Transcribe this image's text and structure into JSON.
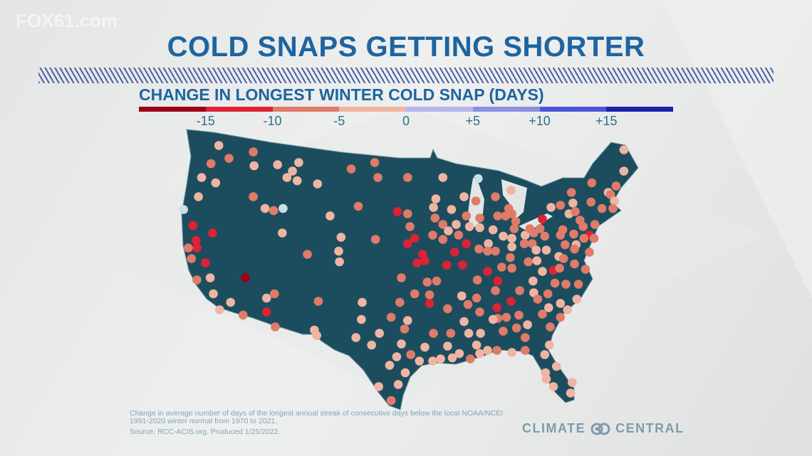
{
  "watermark": "FOX61.com",
  "title": "COLD SNAPS GETTING SHORTER",
  "subtitle": "CHANGE IN LONGEST WINTER COLD SNAP (DAYS)",
  "legend": {
    "colors": [
      "#9b0018",
      "#dd2235",
      "#e07b6a",
      "#efb5a3",
      "#b3b8ea",
      "#8a8fe4",
      "#4a55de",
      "#1a22a8"
    ],
    "ticks": [
      "-15",
      "-10",
      "-5",
      "0",
      "+5",
      "+10",
      "+15"
    ]
  },
  "map_colors": {
    "land": "#1c4d5e",
    "border": "#6f96a2",
    "water": "#e3e5e5"
  },
  "stations": [
    [
      -119.8,
      49.2,
      -2
    ],
    [
      -118.5,
      48.0,
      -7
    ],
    [
      -120.8,
      47.5,
      -7
    ],
    [
      -115.4,
      48.6,
      -7
    ],
    [
      -115.3,
      47.3,
      -2
    ],
    [
      -122.0,
      46.2,
      -2
    ],
    [
      -120.2,
      45.7,
      -2
    ],
    [
      -122.4,
      44.4,
      -2
    ],
    [
      -124.3,
      43.2,
      3
    ],
    [
      -115.4,
      44.4,
      -7
    ],
    [
      -113.9,
      43.3,
      -2
    ],
    [
      -112.8,
      43.1,
      -7
    ],
    [
      -111.6,
      43.3,
      3
    ],
    [
      -112.3,
      47.4,
      -2
    ],
    [
      -109.6,
      47.6,
      -2
    ],
    [
      -110.4,
      46.8,
      -2
    ],
    [
      -111.1,
      46.2,
      -2
    ],
    [
      -109.8,
      45.9,
      -2
    ],
    [
      -107.2,
      45.6,
      -2
    ],
    [
      -102.9,
      47.0,
      -7
    ],
    [
      -99.9,
      47.6,
      -7
    ],
    [
      -99.5,
      46.2,
      -7
    ],
    [
      -95.7,
      46.2,
      -7
    ],
    [
      -105.6,
      42.6,
      -2
    ],
    [
      -102.0,
      43.5,
      -7
    ],
    [
      -97.0,
      43.0,
      -12
    ],
    [
      -95.7,
      42.8,
      -7
    ],
    [
      -95.4,
      41.6,
      -7
    ],
    [
      -95.7,
      40.0,
      -12
    ],
    [
      -99.8,
      40.4,
      -7
    ],
    [
      -111.7,
      41.0,
      -2
    ],
    [
      -104.2,
      40.6,
      -2
    ],
    [
      -104.5,
      39.3,
      -2
    ],
    [
      -104.4,
      38.3,
      -2
    ],
    [
      -108.5,
      39.0,
      -7
    ],
    [
      -123.1,
      41.7,
      -12
    ],
    [
      -120.6,
      41.0,
      -12
    ],
    [
      -122.7,
      40.3,
      -12
    ],
    [
      -122.6,
      39.6,
      -12
    ],
    [
      -123.7,
      39.6,
      -7
    ],
    [
      -123.3,
      38.6,
      -7
    ],
    [
      -121.5,
      38.2,
      -12
    ],
    [
      -116.4,
      36.8,
      -17
    ],
    [
      -122.6,
      36.6,
      -7
    ],
    [
      -120.9,
      36.8,
      -2
    ],
    [
      -120.5,
      35.3,
      -2
    ],
    [
      -118.3,
      34.5,
      -2
    ],
    [
      -119.7,
      33.8,
      -2
    ],
    [
      -116.7,
      33.3,
      -7
    ],
    [
      -113.7,
      34.9,
      -2
    ],
    [
      -112.7,
      35.3,
      -7
    ],
    [
      -113.7,
      33.6,
      -12
    ],
    [
      -112.6,
      32.2,
      -7
    ],
    [
      -107.1,
      34.6,
      -7
    ],
    [
      -107.6,
      31.9,
      -2
    ],
    [
      -107.3,
      31.4,
      -2
    ],
    [
      -96.5,
      36.8,
      -7
    ],
    [
      -101.5,
      34.5,
      -2
    ],
    [
      -101.6,
      32.9,
      -2
    ],
    [
      -102.3,
      31.2,
      -2
    ],
    [
      -99.3,
      31.6,
      -2
    ],
    [
      -100.3,
      30.5,
      -2
    ],
    [
      -96.7,
      34.5,
      -7
    ],
    [
      -97.8,
      33.1,
      -7
    ],
    [
      -95.7,
      32.8,
      -2
    ],
    [
      -96.1,
      32.0,
      -7
    ],
    [
      -96.5,
      30.6,
      -2
    ],
    [
      -97.1,
      29.4,
      -2
    ],
    [
      -98.0,
      28.6,
      -2
    ],
    [
      -96.0,
      27.9,
      -2
    ],
    [
      -96.9,
      26.8,
      -2
    ],
    [
      -99.4,
      26.6,
      -2
    ],
    [
      -97.8,
      25.3,
      -7
    ],
    [
      -91.2,
      46.2,
      -2
    ],
    [
      -86.7,
      46.1,
      3
    ],
    [
      -68.1,
      48.8,
      -2
    ],
    [
      -68.1,
      46.8,
      -2
    ],
    [
      -72.2,
      45.7,
      -7
    ],
    [
      -69.1,
      45.4,
      -7
    ],
    [
      -74.8,
      44.8,
      -7
    ],
    [
      -70.1,
      44.8,
      -2
    ],
    [
      -69.8,
      44.6,
      -7
    ],
    [
      -69.3,
      44.0,
      -2
    ],
    [
      -82.5,
      45.0,
      -2
    ],
    [
      -84.5,
      44.4,
      -7
    ],
    [
      -92.1,
      44.2,
      -2
    ],
    [
      -88.5,
      44.4,
      -2
    ],
    [
      -87.0,
      44.0,
      -7
    ],
    [
      -92.4,
      43.4,
      -2
    ],
    [
      -90.1,
      43.2,
      -2
    ],
    [
      -92.2,
      42.4,
      -7
    ],
    [
      -91.2,
      41.8,
      -7
    ],
    [
      -88.2,
      42.6,
      -7
    ],
    [
      -86.5,
      42.4,
      -7
    ],
    [
      -89.5,
      41.8,
      -2
    ],
    [
      -87.8,
      41.6,
      -2
    ],
    [
      -86.5,
      41.5,
      -2
    ],
    [
      -90.5,
      41.2,
      -2
    ],
    [
      -92.5,
      40.8,
      -7
    ],
    [
      -89.2,
      40.8,
      -7
    ],
    [
      -91.2,
      40.4,
      -7
    ],
    [
      -94.8,
      40.5,
      -12
    ],
    [
      -88.2,
      40.0,
      -12
    ],
    [
      -89.7,
      39.2,
      -12
    ],
    [
      -93.8,
      39.0,
      -12
    ],
    [
      -93.5,
      38.4,
      -12
    ],
    [
      -94.5,
      38.2,
      -12
    ],
    [
      -90.7,
      38.0,
      -12
    ],
    [
      -88.7,
      38.0,
      -12
    ],
    [
      -85.4,
      40.0,
      -2
    ],
    [
      -86.6,
      39.5,
      -7
    ],
    [
      -85.5,
      39.3,
      -7
    ],
    [
      -84.5,
      39.3,
      -7
    ],
    [
      -84.2,
      42.6,
      -7
    ],
    [
      -82.8,
      43.3,
      -7
    ],
    [
      -83.2,
      42.6,
      -7
    ],
    [
      -82.4,
      42.8,
      -7
    ],
    [
      -81.9,
      42.1,
      -7
    ],
    [
      -84.8,
      41.3,
      -2
    ],
    [
      -83.5,
      40.7,
      -2
    ],
    [
      -82.1,
      41.4,
      -7
    ],
    [
      -82.4,
      40.5,
      -2
    ],
    [
      -82.4,
      39.7,
      -2
    ],
    [
      -82.6,
      38.7,
      -7
    ],
    [
      -80.7,
      40.8,
      -2
    ],
    [
      -80.1,
      41.4,
      -7
    ],
    [
      -79.6,
      41.0,
      -7
    ],
    [
      -78.8,
      41.4,
      -7
    ],
    [
      -78.2,
      40.7,
      -7
    ],
    [
      -80.8,
      40.0,
      -7
    ],
    [
      -79.8,
      40.0,
      -7
    ],
    [
      -79.3,
      39.4,
      -2
    ],
    [
      -78.0,
      39.4,
      -2
    ],
    [
      -80.3,
      38.3,
      -7
    ],
    [
      -79.2,
      38.4,
      -2
    ],
    [
      -78.5,
      42.3,
      -12
    ],
    [
      -77.4,
      43.4,
      -2
    ],
    [
      -76.2,
      43.6,
      -7
    ],
    [
      -74.6,
      43.8,
      -2
    ],
    [
      -75.1,
      42.8,
      -2
    ],
    [
      -74.3,
      43.0,
      -7
    ],
    [
      -73.7,
      42.2,
      -7
    ],
    [
      -73.3,
      41.6,
      -7
    ],
    [
      -71.8,
      41.8,
      -7
    ],
    [
      -72.3,
      43.9,
      -7
    ],
    [
      -70.9,
      43.3,
      -7
    ],
    [
      -69.5,
      43.3,
      -7
    ],
    [
      -75.9,
      41.3,
      -7
    ],
    [
      -76.2,
      40.8,
      -7
    ],
    [
      -74.5,
      40.9,
      -7
    ],
    [
      -72.5,
      40.8,
      -12
    ],
    [
      -71.9,
      40.5,
      -7
    ],
    [
      -73.2,
      40.5,
      -7
    ],
    [
      -75.6,
      39.9,
      -7
    ],
    [
      -74.2,
      39.9,
      -2
    ],
    [
      -74.4,
      39.5,
      -7
    ],
    [
      -76.4,
      38.8,
      -2
    ],
    [
      -75.8,
      38.6,
      -7
    ],
    [
      -72.5,
      39.2,
      -7
    ],
    [
      -74.4,
      38.1,
      -7
    ],
    [
      -77.1,
      37.5,
      -12
    ],
    [
      -76.3,
      37.7,
      -7
    ],
    [
      -78.5,
      37.4,
      -2
    ],
    [
      -73.0,
      37.6,
      -7
    ],
    [
      -85.5,
      37.4,
      -12
    ],
    [
      -83.7,
      37.8,
      -7
    ],
    [
      -82.4,
      37.7,
      -7
    ],
    [
      -86.8,
      36.6,
      -7
    ],
    [
      -84.2,
      36.5,
      -12
    ],
    [
      -79.7,
      36.5,
      -2
    ],
    [
      -93.2,
      36.4,
      -7
    ],
    [
      -92.0,
      36.5,
      -7
    ],
    [
      -76.9,
      36.3,
      -7
    ],
    [
      -75.5,
      36.2,
      -7
    ],
    [
      -73.9,
      36.2,
      -7
    ],
    [
      -94.8,
      35.3,
      -7
    ],
    [
      -92.9,
      35.2,
      -7
    ],
    [
      -92.9,
      34.4,
      -12
    ],
    [
      -90.6,
      33.9,
      -7
    ],
    [
      -88.8,
      35.1,
      -2
    ],
    [
      -86.9,
      34.9,
      -7
    ],
    [
      -84.5,
      35.6,
      -7
    ],
    [
      -88.0,
      34.3,
      -7
    ],
    [
      -86.5,
      33.6,
      -7
    ],
    [
      -81.4,
      35.6,
      -7
    ],
    [
      -82.5,
      34.6,
      -12
    ],
    [
      -84.3,
      34.0,
      -12
    ],
    [
      -79.6,
      35.4,
      -2
    ],
    [
      -77.8,
      35.3,
      -7
    ],
    [
      -79.1,
      34.8,
      -7
    ],
    [
      -76.2,
      34.4,
      -2
    ],
    [
      -74.1,
      34.8,
      -2
    ],
    [
      -77.7,
      34.0,
      -2
    ],
    [
      -75.3,
      33.8,
      -2
    ],
    [
      -78.5,
      33.4,
      -7
    ],
    [
      -76.2,
      33.1,
      -7
    ],
    [
      -81.5,
      33.3,
      -7
    ],
    [
      -80.4,
      32.4,
      -2
    ],
    [
      -77.5,
      32.2,
      -7
    ],
    [
      -81.8,
      32.1,
      -7
    ],
    [
      -83.1,
      33.1,
      -7
    ],
    [
      -84.2,
      33.0,
      -7
    ],
    [
      -84.8,
      32.9,
      -2
    ],
    [
      -88.5,
      32.7,
      -2
    ],
    [
      -92.4,
      31.6,
      -7
    ],
    [
      -90.2,
      31.6,
      -7
    ],
    [
      -87.9,
      31.6,
      -2
    ],
    [
      -86.4,
      31.6,
      -2
    ],
    [
      -83.5,
      31.8,
      -7
    ],
    [
      -80.7,
      31.2,
      -7
    ],
    [
      -93.5,
      30.3,
      -2
    ],
    [
      -90.6,
      30.4,
      -2
    ],
    [
      -86.9,
      30.5,
      -2
    ],
    [
      -95.3,
      29.6,
      -7
    ],
    [
      -94.2,
      29.0,
      -2
    ],
    [
      -92.5,
      29.0,
      -2
    ],
    [
      -91.5,
      29.2,
      -2
    ],
    [
      -90.0,
      29.3,
      -2
    ],
    [
      -89.1,
      29.7,
      -2
    ],
    [
      -87.7,
      29.2,
      -7
    ],
    [
      -86.5,
      29.7,
      -2
    ],
    [
      -85.5,
      30.0,
      -2
    ],
    [
      -84.3,
      30.0,
      -7
    ],
    [
      -82.4,
      29.8,
      -2
    ],
    [
      -80.7,
      30.0,
      -7
    ],
    [
      -77.6,
      30.5,
      -2
    ],
    [
      -78.2,
      29.6,
      -2
    ],
    [
      -76.7,
      28.5,
      -2
    ],
    [
      -78.1,
      27.9,
      -2
    ],
    [
      -78.0,
      27.3,
      -2
    ],
    [
      -77.1,
      26.6,
      -2
    ],
    [
      -74.7,
      27.0,
      -2
    ],
    [
      -74.9,
      26.0,
      -2
    ]
  ],
  "footnote": "Change in average number of days of the longest annual streak of consecutive days below the local NOAA/NCEI 1991-2020 winter normal from 1970 to 2021.",
  "source": "Source: RCC-ACIS.org. Produced 1/25/2022.",
  "logo": {
    "left": "CLIMATE",
    "right": "CENTRAL"
  }
}
